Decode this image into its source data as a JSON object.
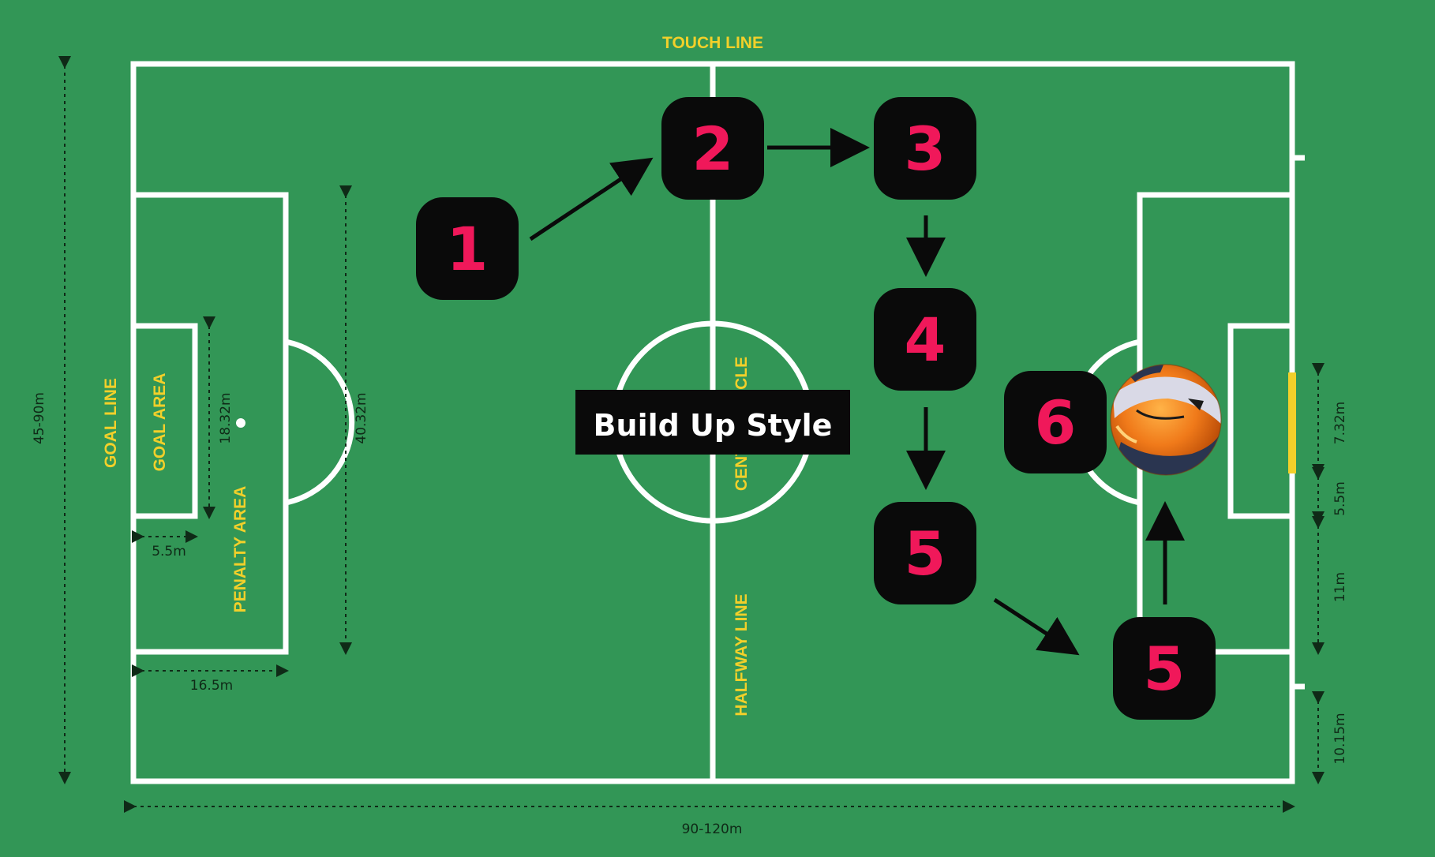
{
  "title": "Build Up Style",
  "field_labels": {
    "touch_line": "TOUCH LINE",
    "goal_line": "GOAL LINE",
    "goal_area": "GOAL AREA",
    "penalty_area": "PENALTY AREA",
    "centre_circle": "CENTRE CIRCLE",
    "halfway_line": "HALFWAY LINE"
  },
  "dimensions": {
    "pitch_width": "45-90m",
    "pitch_length": "90-120m",
    "goal_area_width": "18.32m",
    "penalty_area_width": "40.32m",
    "goal_area_depth": "5.5m",
    "penalty_area_depth": "16.5m",
    "goal_width": "7.32m",
    "goal_area_offset": "5.5m",
    "penalty_spot_distance": "11m",
    "area_to_corner": "10.15m"
  },
  "steps": [
    "1",
    "2",
    "3",
    "4",
    "5",
    "5",
    "6"
  ],
  "colors": {
    "pitch": "#329656",
    "lines": "#ffffff",
    "labels": "#f2d02a",
    "step_box": "#0a0a0a",
    "step_number": "#f0185a",
    "banner": "#0a0a0a"
  },
  "ball": "soccer-ball-icon"
}
